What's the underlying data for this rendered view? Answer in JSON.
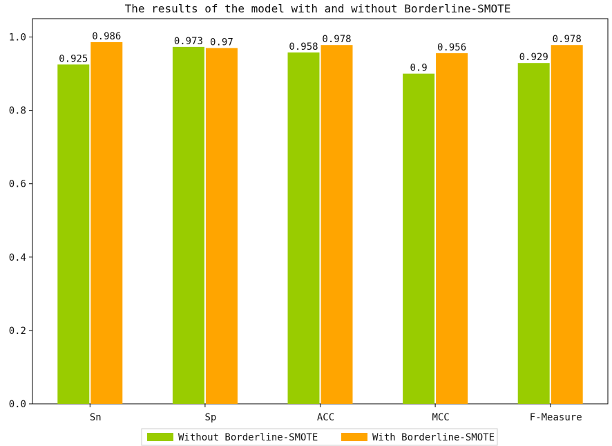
{
  "chart_data": {
    "type": "bar",
    "title": "The results of the model with and without Borderline-SMOTE",
    "xlabel": "",
    "ylabel": "",
    "categories": [
      "Sn",
      "Sp",
      "ACC",
      "MCC",
      "F-Measure"
    ],
    "series": [
      {
        "name": "Without Borderline-SMOTE",
        "color": "#99cc00",
        "values": [
          0.925,
          0.973,
          0.958,
          0.9,
          0.929
        ],
        "labels": [
          "0.925",
          "0.973",
          "0.958",
          "0.9",
          "0.929"
        ]
      },
      {
        "name": "With Borderline-SMOTE",
        "color": "#ffa500",
        "values": [
          0.986,
          0.97,
          0.978,
          0.956,
          0.978
        ],
        "labels": [
          "0.986",
          "0.97",
          "0.978",
          "0.956",
          "0.978"
        ]
      }
    ],
    "ylim": [
      0,
      1.05
    ],
    "yticks": [
      "0.0",
      "0.2",
      "0.4",
      "0.6",
      "0.8",
      "1.0"
    ],
    "ytick_values": [
      0,
      0.2,
      0.4,
      0.6,
      0.8,
      1.0
    ],
    "grid": false,
    "legend_placement": "bottom-center"
  }
}
